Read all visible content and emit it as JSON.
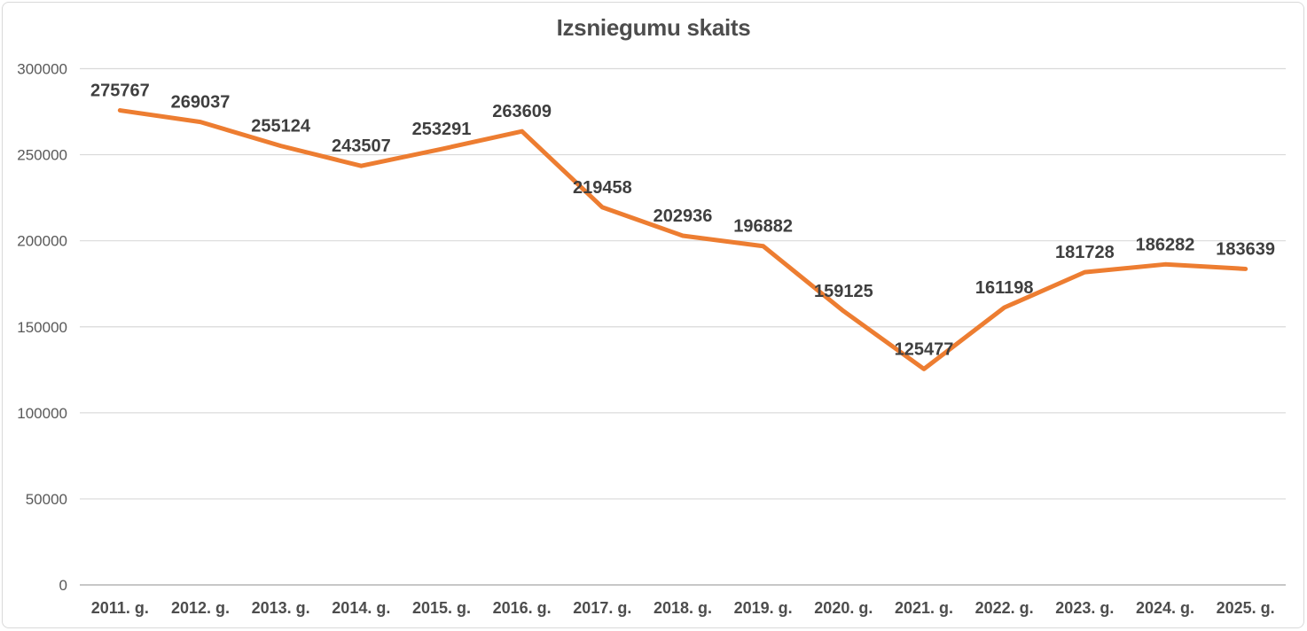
{
  "chart_data": {
    "type": "line",
    "title": "Izsniegumu skaits",
    "categories": [
      "2011. g.",
      "2012. g.",
      "2013. g.",
      "2014. g.",
      "2015. g.",
      "2016. g.",
      "2017. g.",
      "2018. g.",
      "2019. g.",
      "2020. g.",
      "2021. g.",
      "2022. g.",
      "2023. g.",
      "2024. g.",
      "2025. g."
    ],
    "values": [
      275767,
      269037,
      255124,
      243507,
      253291,
      263609,
      219458,
      202936,
      196882,
      159125,
      125477,
      161198,
      181728,
      186282,
      183639
    ],
    "y_ticks": [
      0,
      50000,
      100000,
      150000,
      200000,
      250000,
      300000
    ],
    "ylim": [
      0,
      300000
    ],
    "xlabel": "",
    "ylabel": "",
    "grid": "horizontal-only",
    "legend": "none",
    "data_labels": "above",
    "line_color": "#ED7D31",
    "gridline_color": "#D9D9D9",
    "axis_line_color": "#BFBFBF",
    "data_label_color": "#3F3F3F",
    "tick_label_color": "#595959",
    "title_color": "#4D4D4D"
  }
}
